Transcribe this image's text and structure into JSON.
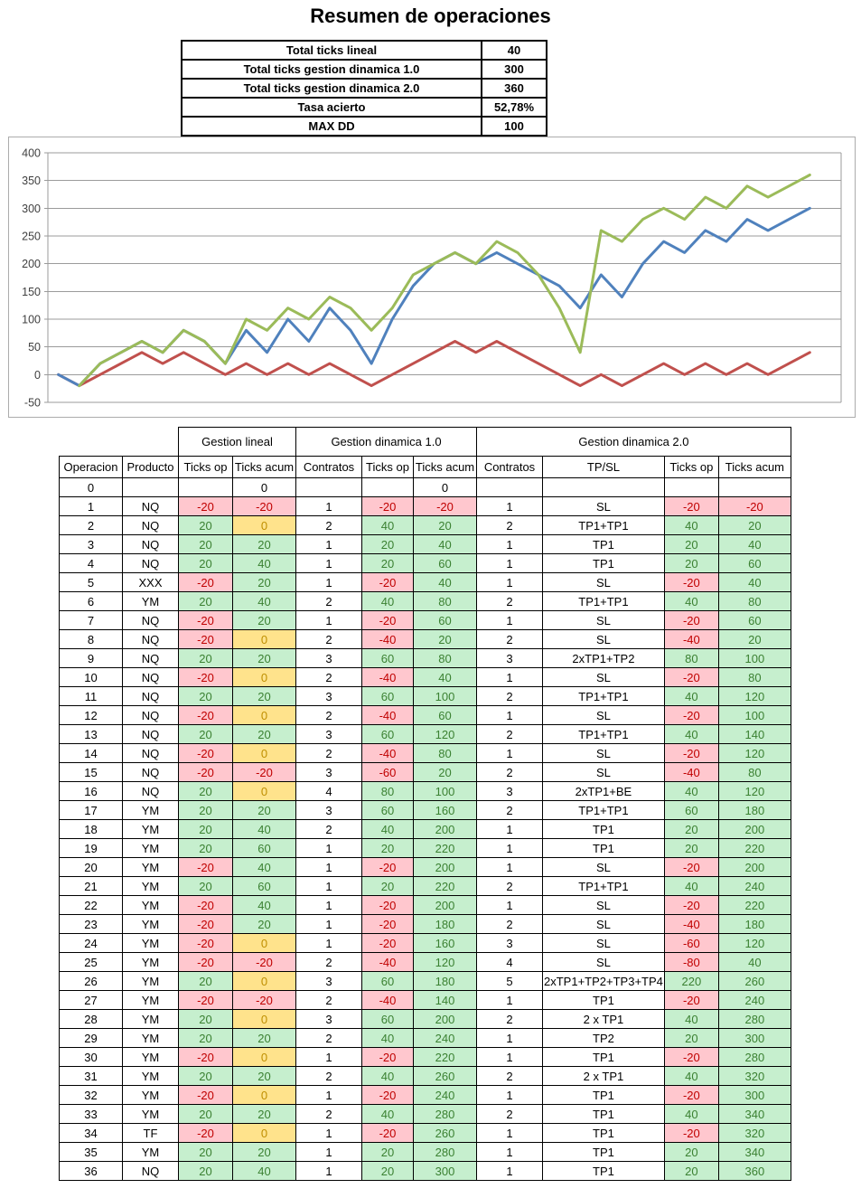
{
  "title": "Resumen de operaciones",
  "summary": {
    "rows": [
      {
        "label": "Total ticks lineal",
        "value": "40"
      },
      {
        "label": "Total ticks gestion dinamica 1.0",
        "value": "300"
      },
      {
        "label": "Total ticks gestion dinamica 2.0",
        "value": "360"
      },
      {
        "label": "Tasa acierto",
        "value": "52,78%"
      },
      {
        "label": "MAX DD",
        "value": "100"
      }
    ]
  },
  "chart_data": {
    "type": "line",
    "title": "",
    "xlabel": "",
    "ylabel": "",
    "x": [
      0,
      1,
      2,
      3,
      4,
      5,
      6,
      7,
      8,
      9,
      10,
      11,
      12,
      13,
      14,
      15,
      16,
      17,
      18,
      19,
      20,
      21,
      22,
      23,
      24,
      25,
      26,
      27,
      28,
      29,
      30,
      31,
      32,
      33,
      34,
      35,
      36
    ],
    "series": [
      {
        "name": "Gestion lineal",
        "color": "#C0504D",
        "values": [
          0,
          -20,
          0,
          20,
          40,
          20,
          40,
          20,
          0,
          20,
          0,
          20,
          0,
          20,
          0,
          -20,
          0,
          20,
          40,
          60,
          40,
          60,
          40,
          20,
          0,
          -20,
          0,
          -20,
          0,
          20,
          0,
          20,
          0,
          20,
          0,
          20,
          40
        ]
      },
      {
        "name": "Gestion dinamica 1.0",
        "color": "#4F81BD",
        "values": [
          0,
          -20,
          20,
          40,
          60,
          40,
          80,
          60,
          20,
          80,
          40,
          100,
          60,
          120,
          80,
          20,
          100,
          160,
          200,
          220,
          200,
          220,
          200,
          180,
          160,
          120,
          180,
          140,
          200,
          240,
          220,
          260,
          240,
          280,
          260,
          280,
          300
        ]
      },
      {
        "name": "Gestion dinamica 2.0",
        "color": "#9BBB59",
        "values": [
          null,
          -20,
          20,
          40,
          60,
          40,
          80,
          60,
          20,
          100,
          80,
          120,
          100,
          140,
          120,
          80,
          120,
          180,
          200,
          220,
          200,
          240,
          220,
          180,
          120,
          40,
          260,
          240,
          280,
          300,
          280,
          320,
          300,
          340,
          320,
          340,
          360
        ]
      }
    ],
    "ylim": [
      -50,
      400
    ],
    "ytick_step": 50,
    "yticks": [
      400,
      350,
      300,
      250,
      200,
      150,
      100,
      50,
      0,
      -50
    ],
    "grid": true,
    "legend": "none",
    "gridline_color": "#9b9b9b"
  },
  "table": {
    "group_headers": [
      {
        "label": "",
        "span": 2
      },
      {
        "label": "Gestion lineal",
        "span": 2
      },
      {
        "label": "Gestion dinamica 1.0",
        "span": 3
      },
      {
        "label": "Gestion dinamica 2.0",
        "span": 4
      }
    ],
    "columns": [
      "Operacion",
      "Producto",
      "Ticks op",
      "Ticks acum",
      "Contratos",
      "Ticks op",
      "Ticks acum",
      "Contratos",
      "TP/SL",
      "Ticks op",
      "Ticks acum"
    ],
    "rows": [
      [
        "0",
        "",
        null,
        0,
        "",
        null,
        0,
        "",
        "",
        null,
        null
      ],
      [
        "1",
        "NQ",
        -20,
        -20,
        "1",
        -20,
        -20,
        "1",
        "SL",
        -20,
        -20
      ],
      [
        "2",
        "NQ",
        20,
        0,
        "2",
        40,
        20,
        "2",
        "TP1+TP1",
        40,
        20
      ],
      [
        "3",
        "NQ",
        20,
        20,
        "1",
        20,
        40,
        "1",
        "TP1",
        20,
        40
      ],
      [
        "4",
        "NQ",
        20,
        40,
        "1",
        20,
        60,
        "1",
        "TP1",
        20,
        60
      ],
      [
        "5",
        "XXX",
        -20,
        20,
        "1",
        -20,
        40,
        "1",
        "SL",
        -20,
        40
      ],
      [
        "6",
        "YM",
        20,
        40,
        "2",
        40,
        80,
        "2",
        "TP1+TP1",
        40,
        80
      ],
      [
        "7",
        "NQ",
        -20,
        20,
        "1",
        -20,
        60,
        "1",
        "SL",
        -20,
        60
      ],
      [
        "8",
        "NQ",
        -20,
        0,
        "2",
        -40,
        20,
        "2",
        "SL",
        -40,
        20
      ],
      [
        "9",
        "NQ",
        20,
        20,
        "3",
        60,
        80,
        "3",
        "2xTP1+TP2",
        80,
        100
      ],
      [
        "10",
        "NQ",
        -20,
        0,
        "2",
        -40,
        40,
        "1",
        "SL",
        -20,
        80
      ],
      [
        "11",
        "NQ",
        20,
        20,
        "3",
        60,
        100,
        "2",
        "TP1+TP1",
        40,
        120
      ],
      [
        "12",
        "NQ",
        -20,
        0,
        "2",
        -40,
        60,
        "1",
        "SL",
        -20,
        100
      ],
      [
        "13",
        "NQ",
        20,
        20,
        "3",
        60,
        120,
        "2",
        "TP1+TP1",
        40,
        140
      ],
      [
        "14",
        "NQ",
        -20,
        0,
        "2",
        -40,
        80,
        "1",
        "SL",
        -20,
        120
      ],
      [
        "15",
        "NQ",
        -20,
        -20,
        "3",
        -60,
        20,
        "2",
        "SL",
        -40,
        80
      ],
      [
        "16",
        "NQ",
        20,
        0,
        "4",
        80,
        100,
        "3",
        "2xTP1+BE",
        40,
        120
      ],
      [
        "17",
        "YM",
        20,
        20,
        "3",
        60,
        160,
        "2",
        "TP1+TP1",
        60,
        180
      ],
      [
        "18",
        "YM",
        20,
        40,
        "2",
        40,
        200,
        "1",
        "TP1",
        20,
        200
      ],
      [
        "19",
        "YM",
        20,
        60,
        "1",
        20,
        220,
        "1",
        "TP1",
        20,
        220
      ],
      [
        "20",
        "YM",
        -20,
        40,
        "1",
        -20,
        200,
        "1",
        "SL",
        -20,
        200
      ],
      [
        "21",
        "YM",
        20,
        60,
        "1",
        20,
        220,
        "2",
        "TP1+TP1",
        40,
        240
      ],
      [
        "22",
        "YM",
        -20,
        40,
        "1",
        -20,
        200,
        "1",
        "SL",
        -20,
        220
      ],
      [
        "23",
        "YM",
        -20,
        20,
        "1",
        -20,
        180,
        "2",
        "SL",
        -40,
        180
      ],
      [
        "24",
        "YM",
        -20,
        0,
        "1",
        -20,
        160,
        "3",
        "SL",
        -60,
        120
      ],
      [
        "25",
        "YM",
        -20,
        -20,
        "2",
        -40,
        120,
        "4",
        "SL",
        -80,
        40
      ],
      [
        "26",
        "YM",
        20,
        0,
        "3",
        60,
        180,
        "5",
        "2xTP1+TP2+TP3+TP4",
        220,
        260
      ],
      [
        "27",
        "YM",
        -20,
        -20,
        "2",
        -40,
        140,
        "1",
        "TP1",
        -20,
        240
      ],
      [
        "28",
        "YM",
        20,
        0,
        "3",
        60,
        200,
        "2",
        "2 x TP1",
        40,
        280
      ],
      [
        "29",
        "YM",
        20,
        20,
        "2",
        40,
        240,
        "1",
        "TP2",
        20,
        300
      ],
      [
        "30",
        "YM",
        -20,
        0,
        "1",
        -20,
        220,
        "1",
        "TP1",
        -20,
        280
      ],
      [
        "31",
        "YM",
        20,
        20,
        "2",
        40,
        260,
        "2",
        "2 x TP1",
        40,
        320
      ],
      [
        "32",
        "YM",
        -20,
        0,
        "1",
        -20,
        240,
        "1",
        "TP1",
        -20,
        300
      ],
      [
        "33",
        "YM",
        20,
        20,
        "2",
        40,
        280,
        "2",
        "TP1",
        40,
        340
      ],
      [
        "34",
        "TF",
        -20,
        0,
        "1",
        -20,
        260,
        "1",
        "TP1",
        -20,
        320
      ],
      [
        "35",
        "YM",
        20,
        20,
        "1",
        20,
        280,
        "1",
        "TP1",
        20,
        340
      ],
      [
        "36",
        "NQ",
        20,
        40,
        "1",
        20,
        300,
        "1",
        "TP1",
        20,
        360
      ]
    ]
  },
  "colors": {
    "series_red": "#C0504D",
    "series_blue": "#4F81BD",
    "series_green": "#9BBB59",
    "cell_positive_bg": "#C6EFCE",
    "cell_positive_text": "#3B8132",
    "cell_negative_bg": "#FFC7CE",
    "cell_negative_text": "#C00000",
    "cell_zero_bg": "#FFE38C",
    "cell_zero_text": "#BF8F00",
    "border": "#000000"
  }
}
